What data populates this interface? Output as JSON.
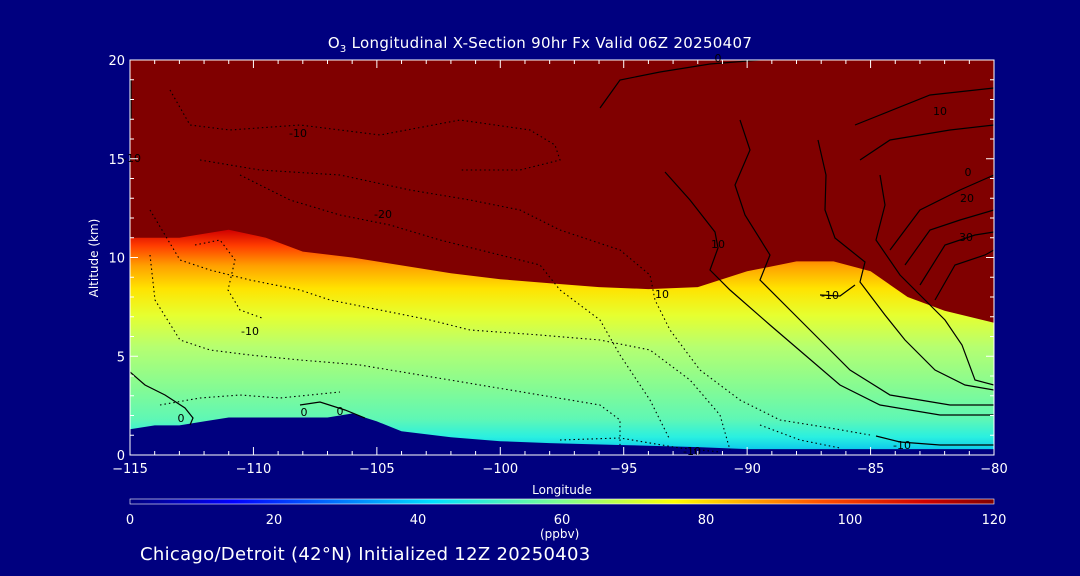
{
  "chart_data": {
    "type": "heatmap",
    "title_main": "O",
    "title_sub": "3",
    "title_rest": " Longitudinal X-Section 90hr  Fx Valid 06Z 20250407",
    "xlabel": "Longitude",
    "ylabel": "Altitude (km)",
    "xlim": [
      -115,
      -80
    ],
    "ylim": [
      0,
      20
    ],
    "x_ticks": [
      -115,
      -110,
      -105,
      -100,
      -95,
      -90,
      -85,
      -80
    ],
    "x_tick_labels": [
      "−115",
      "−110",
      "−105",
      "−100",
      "−95",
      "−90",
      "−85",
      "−80"
    ],
    "y_ticks": [
      0,
      5,
      10,
      15,
      20
    ],
    "y_tick_labels": [
      "0",
      "5",
      "10",
      "15",
      "20"
    ],
    "colorbar": {
      "label": "(ppbv)",
      "range": [
        0,
        120
      ],
      "ticks": [
        0,
        20,
        40,
        60,
        80,
        100,
        120
      ],
      "tick_labels": [
        "0",
        "20",
        "40",
        "60",
        "80",
        "100",
        "120"
      ]
    },
    "tropopause_altitude_km": {
      "lon": [
        -115,
        -113,
        -111,
        -109.5,
        -108,
        -106,
        -104,
        -102,
        -100,
        -98,
        -96,
        -94,
        -92,
        -90,
        -88,
        -86.5,
        -85,
        -83.5,
        -82,
        -80
      ],
      "alt": [
        11.0,
        11.0,
        11.4,
        11.0,
        10.3,
        10.0,
        9.6,
        9.2,
        8.9,
        8.7,
        8.5,
        8.4,
        8.5,
        9.3,
        9.8,
        9.8,
        9.3,
        8.0,
        7.3,
        6.7
      ]
    },
    "terrain_altitude_km": {
      "lon": [
        -115,
        -114,
        -113,
        -112,
        -111,
        -110,
        -109,
        -108,
        -107,
        -106,
        -105,
        -104,
        -102,
        -100,
        -98,
        -95,
        -92,
        -90,
        -88,
        -85,
        -82,
        -80
      ],
      "alt": [
        1.3,
        1.5,
        1.5,
        1.7,
        1.9,
        1.9,
        1.9,
        1.9,
        1.9,
        2.1,
        1.7,
        1.2,
        0.9,
        0.7,
        0.6,
        0.5,
        0.4,
        0.3,
        0.3,
        0.3,
        0.3,
        0.3
      ]
    },
    "contour_labels": [
      "-10",
      "-20",
      "-10",
      "10",
      "10",
      "-10",
      "0",
      "0",
      "0",
      "0",
      "10",
      "20",
      "30",
      "-10",
      "-10",
      "0",
      "-10"
    ]
  },
  "footer": "Chicago/Detroit (42°N) Initialized 12Z 20250403"
}
